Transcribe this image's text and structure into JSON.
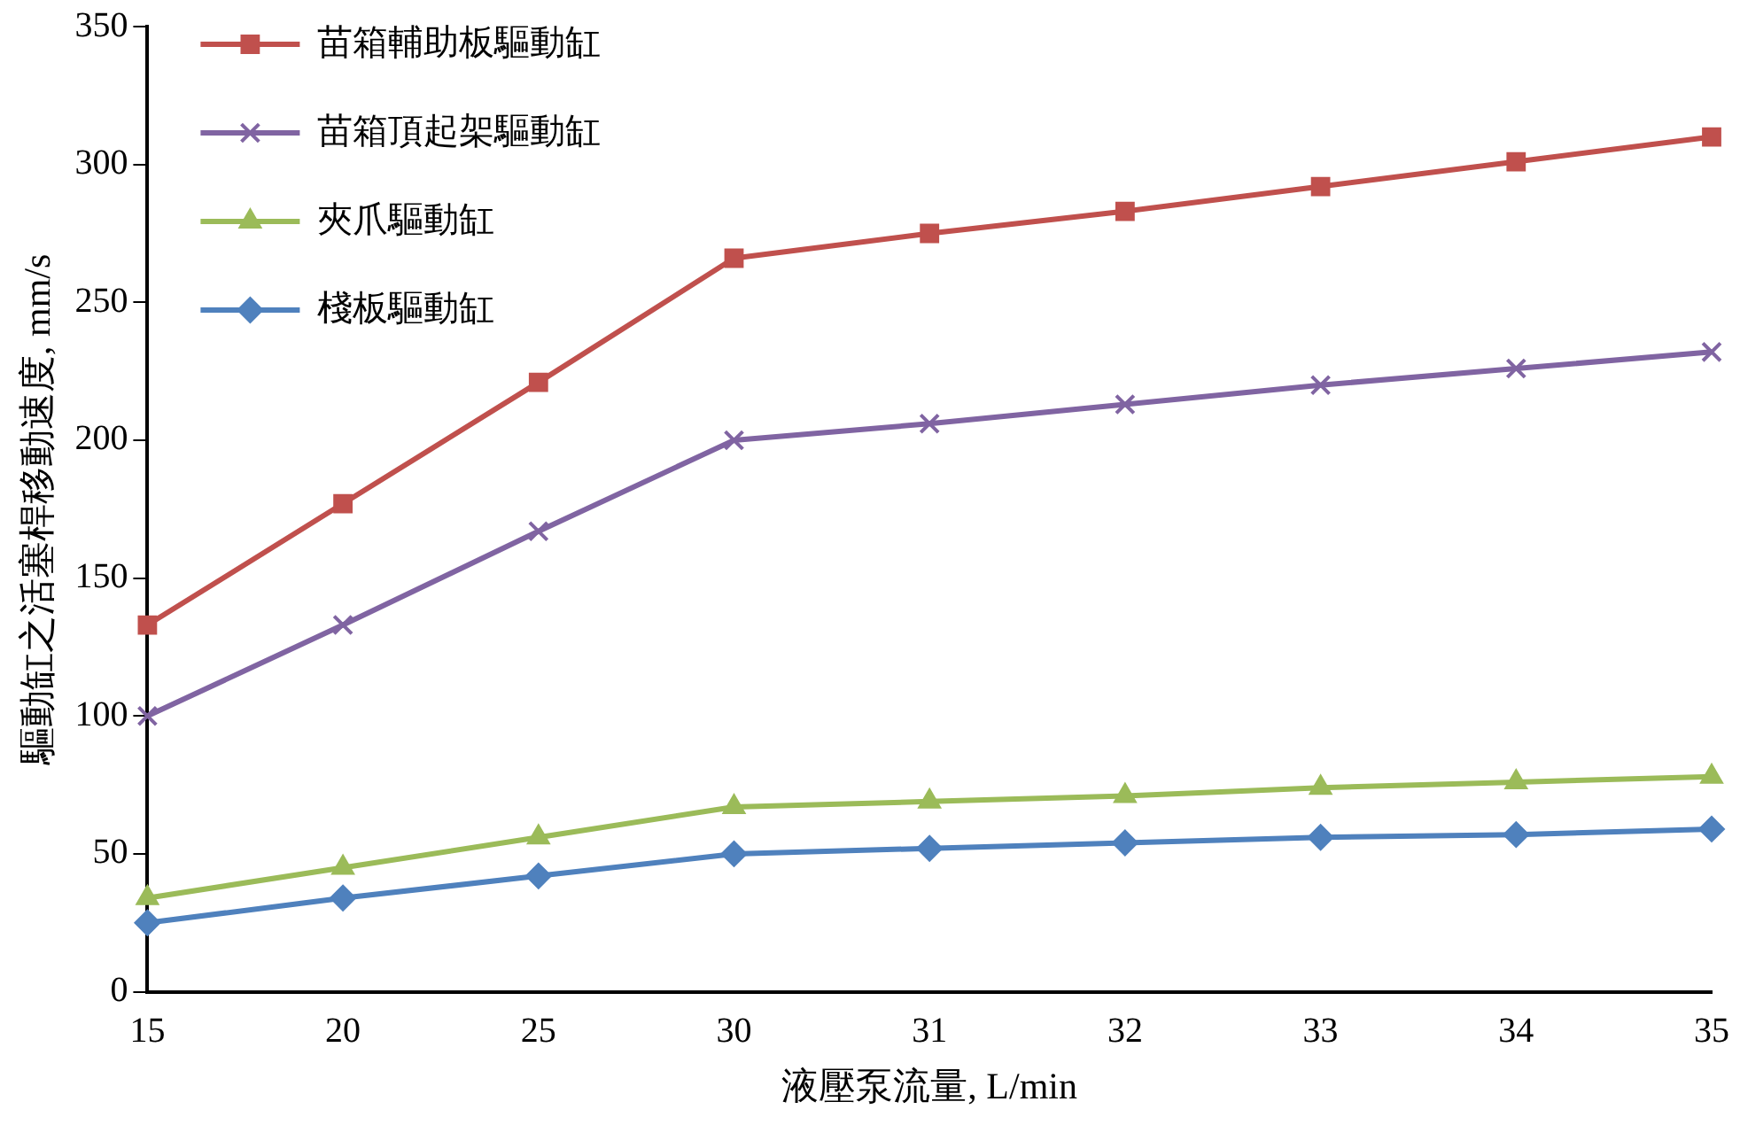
{
  "chart_data": {
    "type": "line",
    "xlabel": "液壓泵流量, L/min",
    "ylabel": "驅動缸之活塞桿移動速度, mm/s",
    "categories": [
      "15",
      "20",
      "25",
      "30",
      "31",
      "32",
      "33",
      "34",
      "35"
    ],
    "ylim": [
      0,
      350
    ],
    "yticks": [
      0,
      50,
      100,
      150,
      200,
      250,
      300,
      350
    ],
    "grid": false,
    "legend": "top left",
    "line_style": "solid",
    "series": [
      {
        "name": "苗箱輔助板驅動缸",
        "color": "#c0504d",
        "marker": "square",
        "values": [
          133,
          177,
          221,
          266,
          275,
          283,
          292,
          301,
          310
        ]
      },
      {
        "name": "苗箱頂起架驅動缸",
        "color": "#8064a2",
        "marker": "cross",
        "values": [
          100,
          133,
          167,
          200,
          206,
          213,
          220,
          226,
          232
        ]
      },
      {
        "name": "夾爪驅動缸",
        "color": "#9bbb59",
        "marker": "triangle",
        "values": [
          34,
          45,
          56,
          67,
          69,
          71,
          74,
          76,
          78
        ]
      },
      {
        "name": "棧板驅動缸",
        "color": "#4f81bd",
        "marker": "diamond",
        "values": [
          25,
          34,
          42,
          50,
          52,
          54,
          56,
          57,
          59
        ]
      }
    ]
  }
}
